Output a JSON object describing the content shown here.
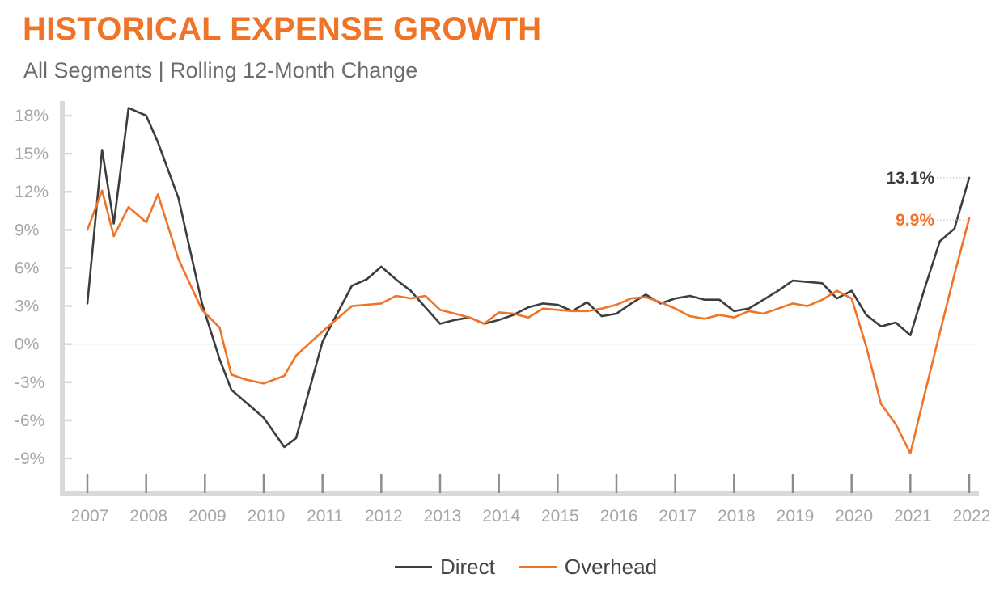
{
  "title": "HISTORICAL EXPENSE GROWTH",
  "subtitle": "All Segments | Rolling 12-Month Change",
  "colors": {
    "direct": "#3d3d3d",
    "overhead": "#f07427",
    "axis": "#d9d9d9",
    "tick_text": "#a6a6a6",
    "title": "#f07427"
  },
  "chart_data": {
    "type": "line",
    "xlim": [
      2007,
      2022
    ],
    "ylim": [
      -10,
      19
    ],
    "y_ticks": [
      18,
      15,
      12,
      9,
      6,
      3,
      0,
      -3,
      -6,
      -9
    ],
    "y_tick_labels": [
      "18%",
      "15%",
      "12%",
      "9%",
      "6%",
      "3%",
      "0%",
      "-3%",
      "-6%",
      "-9%"
    ],
    "x_ticks": [
      2007,
      2008,
      2009,
      2010,
      2011,
      2012,
      2013,
      2014,
      2015,
      2016,
      2017,
      2018,
      2019,
      2020,
      2021,
      2022
    ],
    "x_tick_labels": [
      "2007",
      "2008",
      "2009",
      "2010",
      "2011",
      "2012",
      "2013",
      "2014",
      "2015",
      "2016",
      "2017",
      "2018",
      "2019",
      "2020",
      "2021",
      "2022"
    ],
    "zero_line": true,
    "legend": {
      "position": "bottom-center",
      "entries": [
        "Direct",
        "Overhead"
      ]
    },
    "series": [
      {
        "name": "Direct",
        "color": "#3d3d3d",
        "end_label": "13.1%",
        "x": [
          2007.0,
          2007.25,
          2007.45,
          2007.7,
          2008.0,
          2008.2,
          2008.55,
          2008.95,
          2009.25,
          2009.45,
          2009.7,
          2010.0,
          2010.35,
          2010.55,
          2011.0,
          2011.25,
          2011.5,
          2011.75,
          2012.0,
          2012.25,
          2012.5,
          2012.75,
          2013.0,
          2013.25,
          2013.5,
          2013.75,
          2014.0,
          2014.25,
          2014.5,
          2014.75,
          2015.0,
          2015.25,
          2015.5,
          2015.75,
          2016.0,
          2016.25,
          2016.5,
          2016.75,
          2017.0,
          2017.25,
          2017.5,
          2017.75,
          2018.0,
          2018.25,
          2018.5,
          2018.75,
          2019.0,
          2019.25,
          2019.5,
          2019.75,
          2020.0,
          2020.25,
          2020.5,
          2020.75,
          2021.0,
          2021.25,
          2021.5,
          2021.75,
          2022.0
        ],
        "values": [
          3.2,
          15.3,
          9.5,
          18.6,
          18.0,
          15.9,
          11.5,
          3.2,
          -1.2,
          -3.6,
          -4.6,
          -5.8,
          -8.1,
          -7.4,
          0.2,
          2.4,
          4.6,
          5.1,
          6.1,
          5.1,
          4.2,
          2.9,
          1.6,
          1.9,
          2.1,
          1.6,
          1.9,
          2.3,
          2.9,
          3.2,
          3.1,
          2.6,
          3.3,
          2.2,
          2.4,
          3.2,
          3.9,
          3.2,
          3.6,
          3.8,
          3.5,
          3.5,
          2.6,
          2.8,
          3.5,
          4.2,
          5.0,
          4.9,
          4.8,
          3.6,
          4.2,
          2.3,
          1.4,
          1.7,
          0.7,
          4.5,
          8.1,
          9.1,
          13.1
        ]
      },
      {
        "name": "Overhead",
        "color": "#f07427",
        "end_label": "9.9%",
        "x": [
          2007.0,
          2007.25,
          2007.45,
          2007.7,
          2008.0,
          2008.2,
          2008.55,
          2008.95,
          2009.25,
          2009.45,
          2009.7,
          2010.0,
          2010.35,
          2010.55,
          2011.0,
          2011.25,
          2011.5,
          2011.75,
          2012.0,
          2012.25,
          2012.5,
          2012.75,
          2013.0,
          2013.25,
          2013.5,
          2013.75,
          2014.0,
          2014.25,
          2014.5,
          2014.75,
          2015.0,
          2015.25,
          2015.5,
          2015.75,
          2016.0,
          2016.25,
          2016.5,
          2016.75,
          2017.0,
          2017.25,
          2017.5,
          2017.75,
          2018.0,
          2018.25,
          2018.5,
          2018.75,
          2019.0,
          2019.25,
          2019.5,
          2019.75,
          2020.0,
          2020.25,
          2020.5,
          2020.75,
          2021.0,
          2021.25,
          2021.5,
          2021.75,
          2022.0
        ],
        "values": [
          9.0,
          12.1,
          8.5,
          10.8,
          9.6,
          11.8,
          6.7,
          2.7,
          1.3,
          -2.4,
          -2.8,
          -3.1,
          -2.5,
          -0.9,
          1.0,
          2.0,
          3.0,
          3.1,
          3.2,
          3.8,
          3.6,
          3.8,
          2.7,
          2.4,
          2.1,
          1.6,
          2.5,
          2.4,
          2.1,
          2.8,
          2.7,
          2.6,
          2.6,
          2.8,
          3.1,
          3.6,
          3.7,
          3.3,
          2.8,
          2.2,
          2.0,
          2.3,
          2.1,
          2.6,
          2.4,
          2.8,
          3.2,
          3.0,
          3.5,
          4.2,
          3.6,
          -0.2,
          -4.7,
          -6.3,
          -8.6,
          -3.8,
          0.9,
          5.5,
          9.9
        ]
      }
    ]
  }
}
